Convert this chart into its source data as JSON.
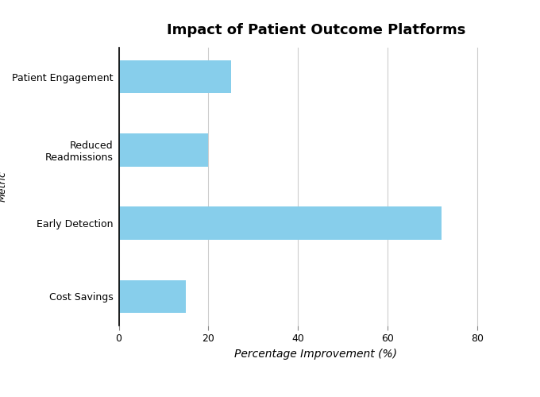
{
  "title": "Impact of Patient Outcome Platforms",
  "categories": [
    "Patient Engagement",
    "Reduced\nReadmissions",
    "Early Detection",
    "Cost Savings"
  ],
  "values": [
    25,
    20,
    72,
    15
  ],
  "bar_color": "#87CEEB",
  "xlabel": "Percentage Improvement (%)",
  "ylabel": "Metric",
  "xlim": [
    0,
    88
  ],
  "xticks": [
    0,
    20,
    40,
    60,
    80
  ],
  "title_fontsize": 13,
  "xlabel_fontsize": 10,
  "ylabel_fontsize": 9,
  "tick_fontsize": 9,
  "background_color": "#ffffff",
  "grid_color": "#cccccc",
  "bar_height": 0.45
}
